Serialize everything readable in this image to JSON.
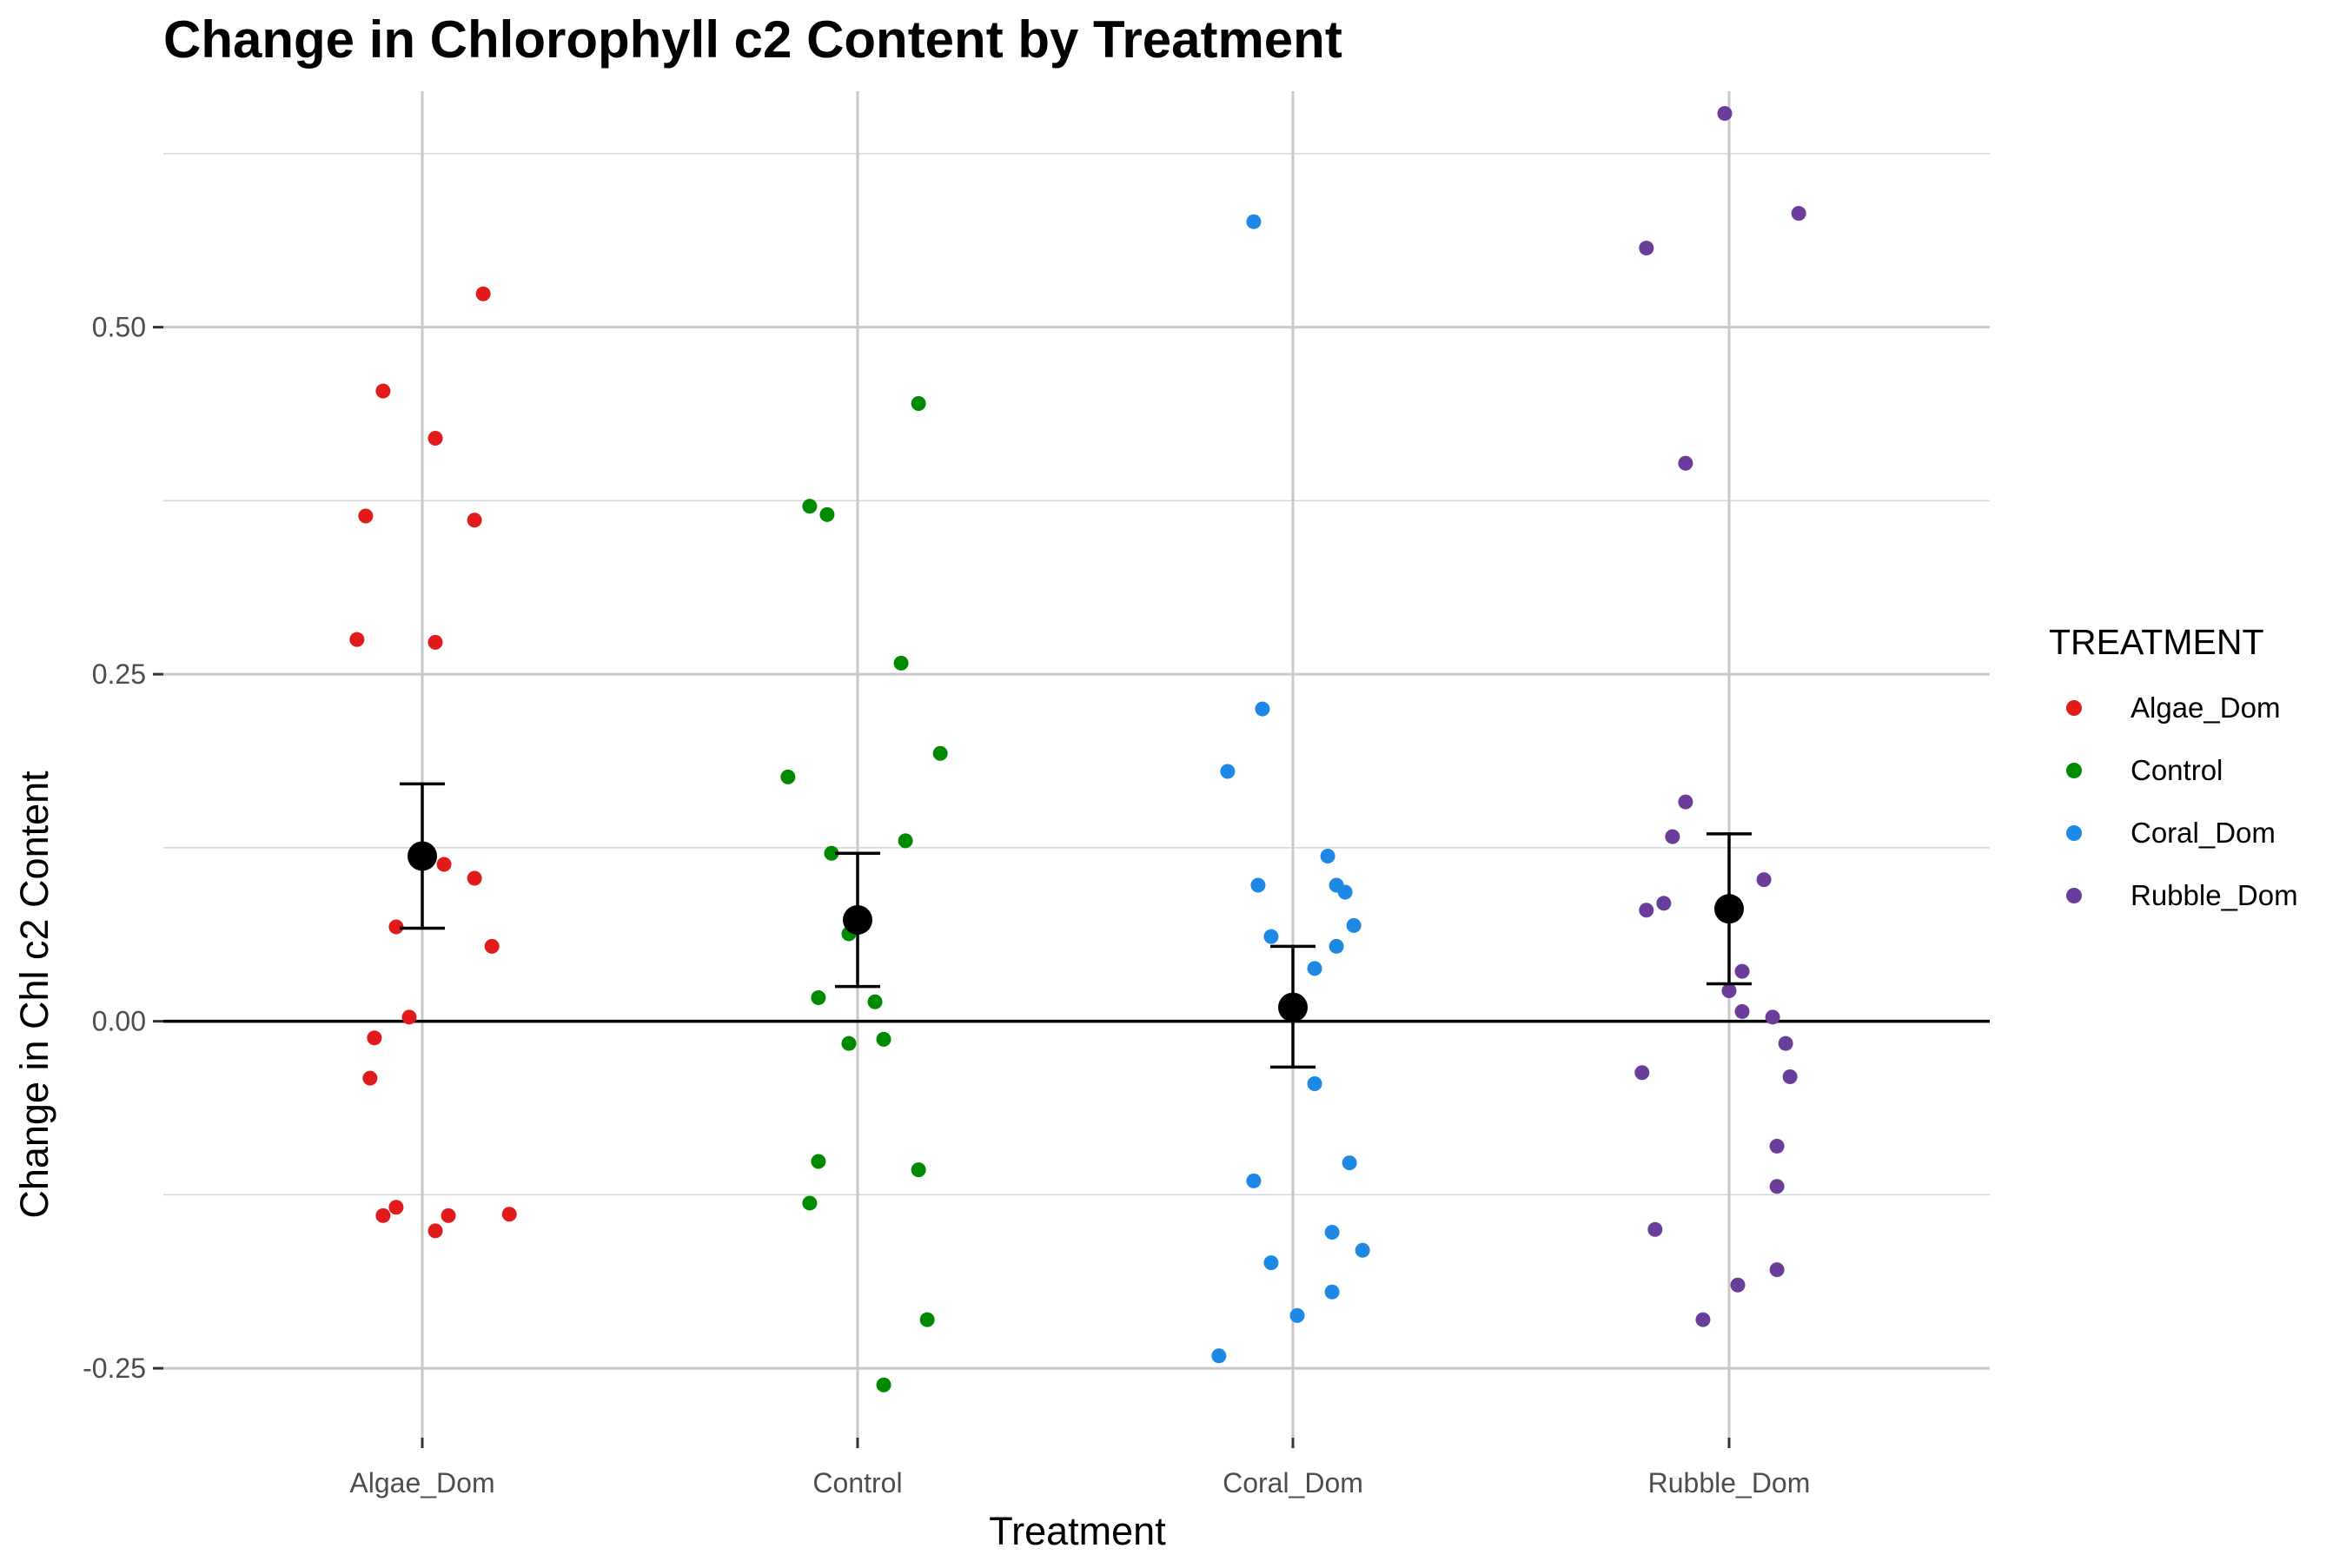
{
  "chart_data": {
    "type": "scatter",
    "title": "Change in Chlorophyll c2 Content by Treatment",
    "xlabel": "Treatment",
    "ylabel": "Change in Chl c2 Content",
    "categories": [
      "Algae_Dom",
      "Control",
      "Coral_Dom",
      "Rubble_Dom"
    ],
    "ylim": [
      -0.3,
      0.67
    ],
    "y_ticks": [
      -0.25,
      0.0,
      0.25,
      0.5
    ],
    "y_tick_labels": [
      "-0.25",
      "0.00",
      "0.25",
      "0.50"
    ],
    "reference_line_y": 0,
    "grid": true,
    "legend": {
      "title": "TREATMENT",
      "position": "right",
      "entries": [
        "Algae_Dom",
        "Control",
        "Coral_Dom",
        "Rubble_Dom"
      ]
    },
    "colors": {
      "Algae_Dom": "#e31a1c",
      "Control": "#008a00",
      "Coral_Dom": "#1e88e5",
      "Rubble_Dom": "#6a3d9a",
      "summary": "#000000"
    },
    "series": [
      {
        "name": "Algae_Dom",
        "points": [
          {
            "jitter": 0.14,
            "y": 0.524
          },
          {
            "jitter": -0.09,
            "y": 0.454
          },
          {
            "jitter": 0.03,
            "y": 0.42
          },
          {
            "jitter": -0.13,
            "y": 0.364
          },
          {
            "jitter": 0.12,
            "y": 0.361
          },
          {
            "jitter": -0.15,
            "y": 0.275
          },
          {
            "jitter": 0.03,
            "y": 0.273
          },
          {
            "jitter": 0.05,
            "y": 0.113
          },
          {
            "jitter": 0.12,
            "y": 0.103
          },
          {
            "jitter": -0.06,
            "y": 0.068
          },
          {
            "jitter": 0.16,
            "y": 0.054
          },
          {
            "jitter": -0.03,
            "y": 0.003
          },
          {
            "jitter": -0.11,
            "y": -0.012
          },
          {
            "jitter": -0.12,
            "y": -0.041
          },
          {
            "jitter": -0.06,
            "y": -0.134
          },
          {
            "jitter": -0.09,
            "y": -0.14
          },
          {
            "jitter": 0.06,
            "y": -0.14
          },
          {
            "jitter": 0.2,
            "y": -0.139
          },
          {
            "jitter": 0.03,
            "y": -0.151
          }
        ]
      },
      {
        "name": "Control",
        "points": [
          {
            "jitter": 0.14,
            "y": 0.445
          },
          {
            "jitter": -0.11,
            "y": 0.371
          },
          {
            "jitter": -0.07,
            "y": 0.365
          },
          {
            "jitter": 0.1,
            "y": 0.258
          },
          {
            "jitter": 0.19,
            "y": 0.193
          },
          {
            "jitter": -0.16,
            "y": 0.176
          },
          {
            "jitter": 0.11,
            "y": 0.13
          },
          {
            "jitter": -0.06,
            "y": 0.121
          },
          {
            "jitter": -0.02,
            "y": 0.063
          },
          {
            "jitter": -0.09,
            "y": 0.017
          },
          {
            "jitter": 0.04,
            "y": 0.014
          },
          {
            "jitter": 0.06,
            "y": -0.013
          },
          {
            "jitter": -0.02,
            "y": -0.016
          },
          {
            "jitter": -0.09,
            "y": -0.101
          },
          {
            "jitter": 0.14,
            "y": -0.107
          },
          {
            "jitter": -0.11,
            "y": -0.131
          },
          {
            "jitter": 0.16,
            "y": -0.215
          },
          {
            "jitter": 0.06,
            "y": -0.262
          }
        ]
      },
      {
        "name": "Coral_Dom",
        "points": [
          {
            "jitter": -0.09,
            "y": 0.576
          },
          {
            "jitter": -0.07,
            "y": 0.225
          },
          {
            "jitter": -0.15,
            "y": 0.18
          },
          {
            "jitter": 0.08,
            "y": 0.119
          },
          {
            "jitter": -0.08,
            "y": 0.098
          },
          {
            "jitter": 0.1,
            "y": 0.098
          },
          {
            "jitter": 0.12,
            "y": 0.093
          },
          {
            "jitter": 0.14,
            "y": 0.069
          },
          {
            "jitter": -0.05,
            "y": 0.061
          },
          {
            "jitter": 0.1,
            "y": 0.054
          },
          {
            "jitter": 0.05,
            "y": 0.038
          },
          {
            "jitter": 0.05,
            "y": -0.045
          },
          {
            "jitter": 0.13,
            "y": -0.102
          },
          {
            "jitter": -0.09,
            "y": -0.115
          },
          {
            "jitter": 0.09,
            "y": -0.152
          },
          {
            "jitter": 0.16,
            "y": -0.165
          },
          {
            "jitter": -0.05,
            "y": -0.174
          },
          {
            "jitter": 0.09,
            "y": -0.195
          },
          {
            "jitter": 0.01,
            "y": -0.212
          },
          {
            "jitter": -0.17,
            "y": -0.241
          }
        ]
      },
      {
        "name": "Rubble_Dom",
        "points": [
          {
            "jitter": -0.01,
            "y": 0.654
          },
          {
            "jitter": 0.16,
            "y": 0.582
          },
          {
            "jitter": -0.19,
            "y": 0.557
          },
          {
            "jitter": -0.1,
            "y": 0.402
          },
          {
            "jitter": -0.1,
            "y": 0.158
          },
          {
            "jitter": -0.13,
            "y": 0.133
          },
          {
            "jitter": 0.08,
            "y": 0.102
          },
          {
            "jitter": -0.15,
            "y": 0.085
          },
          {
            "jitter": -0.19,
            "y": 0.08
          },
          {
            "jitter": 0.03,
            "y": 0.036
          },
          {
            "jitter": 0.0,
            "y": 0.022
          },
          {
            "jitter": 0.03,
            "y": 0.007
          },
          {
            "jitter": 0.1,
            "y": 0.003
          },
          {
            "jitter": 0.13,
            "y": -0.016
          },
          {
            "jitter": -0.2,
            "y": -0.037
          },
          {
            "jitter": 0.14,
            "y": -0.04
          },
          {
            "jitter": 0.11,
            "y": -0.09
          },
          {
            "jitter": 0.11,
            "y": -0.119
          },
          {
            "jitter": -0.17,
            "y": -0.15
          },
          {
            "jitter": 0.11,
            "y": -0.179
          },
          {
            "jitter": 0.02,
            "y": -0.19
          },
          {
            "jitter": -0.06,
            "y": -0.215
          }
        ]
      }
    ],
    "summary": [
      {
        "category": "Algae_Dom",
        "mean": 0.119,
        "lower": 0.067,
        "upper": 0.171
      },
      {
        "category": "Control",
        "mean": 0.073,
        "lower": 0.025,
        "upper": 0.121
      },
      {
        "category": "Coral_Dom",
        "mean": 0.01,
        "lower": -0.033,
        "upper": 0.054
      },
      {
        "category": "Rubble_Dom",
        "mean": 0.081,
        "lower": 0.027,
        "upper": 0.135
      }
    ]
  }
}
